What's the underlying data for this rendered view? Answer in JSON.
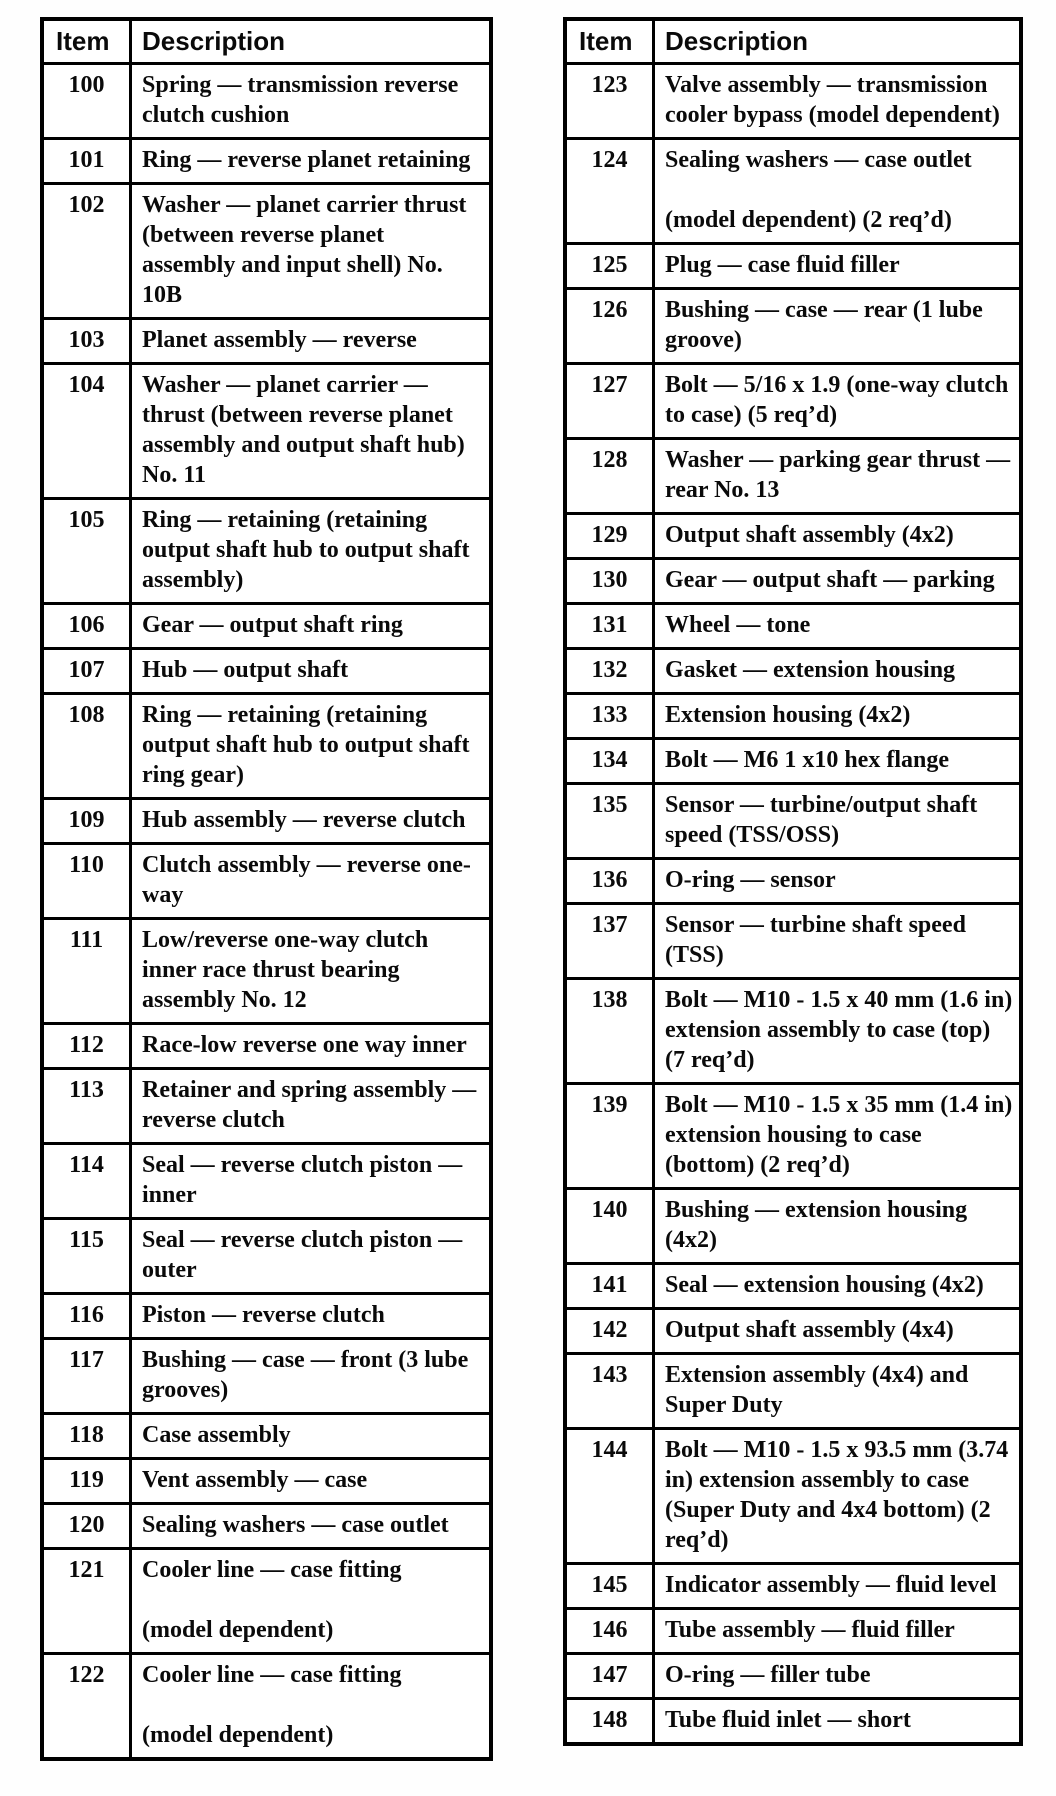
{
  "tables": [
    {
      "side": "left",
      "headers": {
        "item": "Item",
        "description": "Description"
      },
      "rows": [
        {
          "item": "100",
          "description": "Spring — transmission reverse clutch cushion"
        },
        {
          "item": "101",
          "description": "Ring — reverse planet retaining"
        },
        {
          "item": "102",
          "description": "Washer — planet carrier thrust (between reverse planet assembly and input shell) No. 10B"
        },
        {
          "item": "103",
          "description": "Planet assembly — reverse"
        },
        {
          "item": "104",
          "description": "Washer — planet carrier — thrust (between reverse planet assembly and output shaft hub) No. 11"
        },
        {
          "item": "105",
          "description": "Ring — retaining (retaining output shaft hub to output shaft assembly)"
        },
        {
          "item": "106",
          "description": "Gear — output shaft ring"
        },
        {
          "item": "107",
          "description": "Hub — output shaft"
        },
        {
          "item": "108",
          "description": "Ring — retaining (retaining output shaft hub to output shaft ring gear)"
        },
        {
          "item": "109",
          "description": "Hub assembly — reverse clutch"
        },
        {
          "item": "110",
          "description": "Clutch assembly — reverse one-way"
        },
        {
          "item": "111",
          "description": "Low/reverse one-way clutch inner race thrust bearing assembly No. 12"
        },
        {
          "item": "112",
          "description": "Race-low reverse one way inner"
        },
        {
          "item": "113",
          "description": "Retainer and spring assembly — reverse clutch"
        },
        {
          "item": "114",
          "description": "Seal — reverse clutch piston — inner"
        },
        {
          "item": "115",
          "description": "Seal — reverse clutch piston — outer"
        },
        {
          "item": "116",
          "description": "Piston — reverse clutch"
        },
        {
          "item": "117",
          "description": "Bushing — case — front (3 lube grooves)"
        },
        {
          "item": "118",
          "description": "Case assembly"
        },
        {
          "item": "119",
          "description": "Vent assembly — case"
        },
        {
          "item": "120",
          "description": "Sealing washers — case outlet"
        },
        {
          "item": "121",
          "description": "Cooler line — case fitting\n\n(model dependent)"
        },
        {
          "item": "122",
          "description": "Cooler line — case fitting\n\n(model dependent)"
        }
      ]
    },
    {
      "side": "right",
      "headers": {
        "item": "Item",
        "description": "Description"
      },
      "rows": [
        {
          "item": "123",
          "description": "Valve assembly — transmission cooler bypass (model dependent)"
        },
        {
          "item": "124",
          "description": "Sealing washers — case outlet\n\n(model dependent) (2 req’d)"
        },
        {
          "item": "125",
          "description": "Plug — case fluid filler"
        },
        {
          "item": "126",
          "description": "Bushing — case — rear (1 lube groove)"
        },
        {
          "item": "127",
          "description": "Bolt — 5/16 x 1.9 (one-way clutch to case) (5 req’d)"
        },
        {
          "item": "128",
          "description": "Washer — parking gear thrust — rear No. 13"
        },
        {
          "item": "129",
          "description": "Output shaft assembly (4x2)"
        },
        {
          "item": "130",
          "description": "Gear — output shaft — parking"
        },
        {
          "item": "131",
          "description": "Wheel — tone"
        },
        {
          "item": "132",
          "description": "Gasket — extension housing"
        },
        {
          "item": "133",
          "description": "Extension housing (4x2)"
        },
        {
          "item": "134",
          "description": "Bolt — M6 1 x10 hex flange"
        },
        {
          "item": "135",
          "description": "Sensor — turbine/output shaft speed (TSS/OSS)"
        },
        {
          "item": "136",
          "description": "O-ring — sensor"
        },
        {
          "item": "137",
          "description": "Sensor — turbine shaft speed (TSS)"
        },
        {
          "item": "138",
          "description": "Bolt — M10 - 1.5 x 40 mm (1.6 in) extension assembly to case (top) (7 req’d)"
        },
        {
          "item": "139",
          "description": "Bolt — M10 - 1.5 x 35 mm (1.4 in) extension housing to case (bottom) (2 req’d)"
        },
        {
          "item": "140",
          "description": "Bushing — extension housing (4x2)"
        },
        {
          "item": "141",
          "description": "Seal — extension housing (4x2)"
        },
        {
          "item": "142",
          "description": "Output shaft assembly (4x4)"
        },
        {
          "item": "143",
          "description": "Extension assembly (4x4) and Super Duty"
        },
        {
          "item": "144",
          "description": "Bolt — M10 - 1.5 x 93.5 mm (3.74 in) extension assembly to case (Super Duty and 4x4 bottom) (2 req’d)"
        },
        {
          "item": "145",
          "description": "Indicator assembly — fluid level"
        },
        {
          "item": "146",
          "description": "Tube assembly — fluid filler"
        },
        {
          "item": "147",
          "description": "O-ring — filler tube"
        },
        {
          "item": "148",
          "description": "Tube fluid inlet — short"
        }
      ]
    }
  ],
  "colors": {
    "ink": "#0a0a0a",
    "paper": "#fefefe"
  }
}
